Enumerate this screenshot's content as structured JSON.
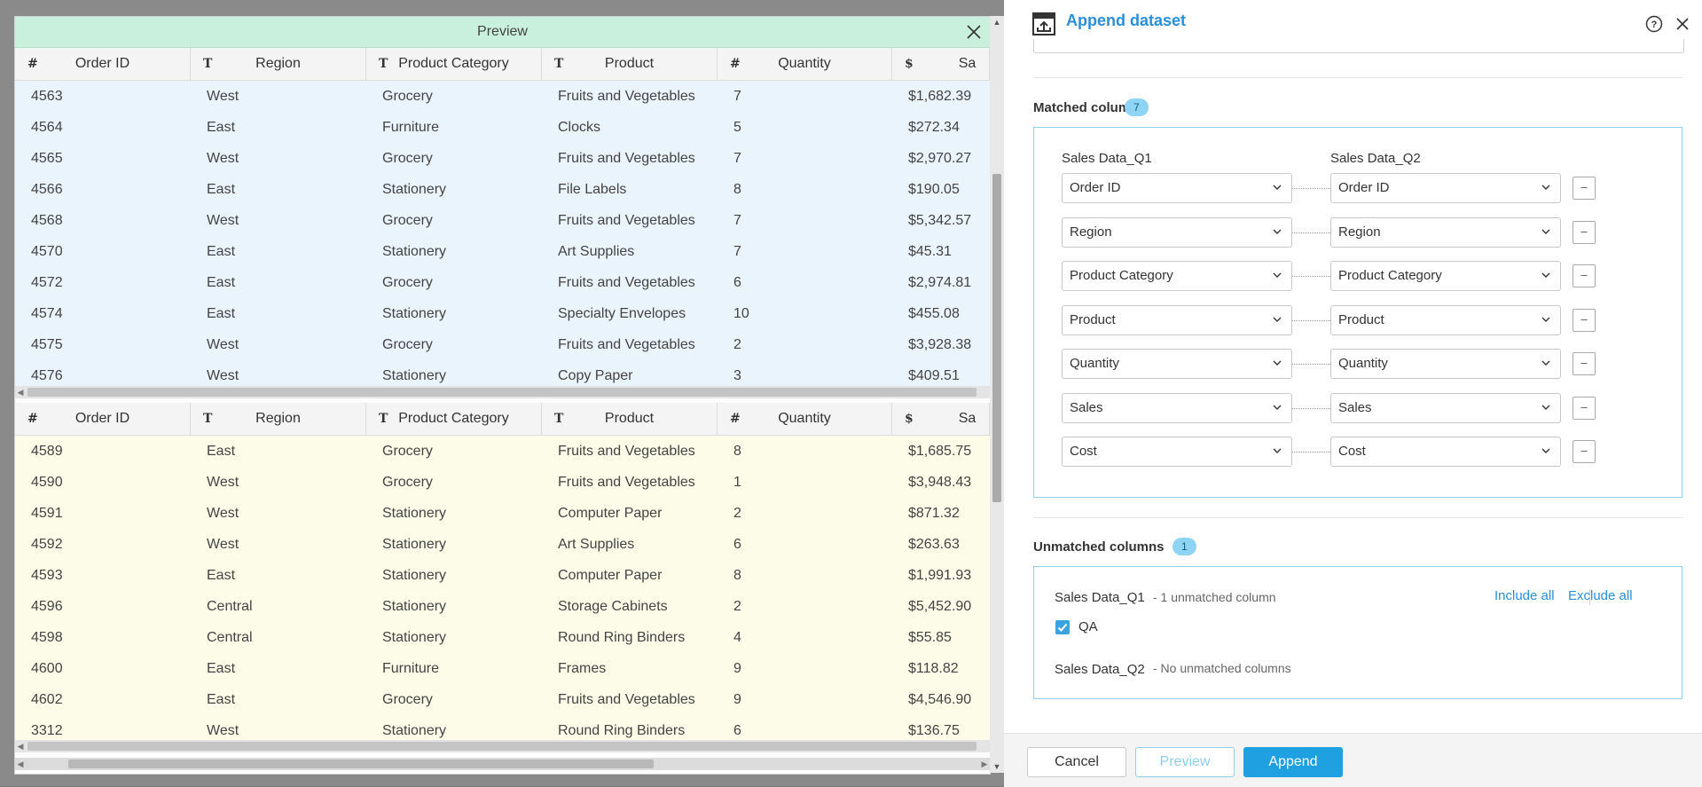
{
  "preview": {
    "title": "Preview",
    "columns": [
      {
        "type_icon": "#",
        "label": "Order ID"
      },
      {
        "type_icon": "T",
        "label": "Region"
      },
      {
        "type_icon": "T",
        "label": "Product Category"
      },
      {
        "type_icon": "T",
        "label": "Product"
      },
      {
        "type_icon": "#",
        "label": "Quantity"
      },
      {
        "type_icon": "$",
        "label": "Sa"
      }
    ],
    "top_rows": [
      [
        "4563",
        "West",
        "Grocery",
        "Fruits and Vegetables",
        "7",
        "$1,682.39"
      ],
      [
        "4564",
        "East",
        "Furniture",
        "Clocks",
        "5",
        "$272.34"
      ],
      [
        "4565",
        "West",
        "Grocery",
        "Fruits and Vegetables",
        "7",
        "$2,970.27"
      ],
      [
        "4566",
        "East",
        "Stationery",
        "File Labels",
        "8",
        "$190.05"
      ],
      [
        "4568",
        "West",
        "Grocery",
        "Fruits and Vegetables",
        "7",
        "$5,342.57"
      ],
      [
        "4570",
        "East",
        "Stationery",
        "Art Supplies",
        "7",
        "$45.31"
      ],
      [
        "4572",
        "East",
        "Grocery",
        "Fruits and Vegetables",
        "6",
        "$2,974.81"
      ],
      [
        "4574",
        "East",
        "Stationery",
        "Specialty Envelopes",
        "10",
        "$455.08"
      ],
      [
        "4575",
        "West",
        "Grocery",
        "Fruits and Vegetables",
        "2",
        "$3,928.38"
      ],
      [
        "4576",
        "West",
        "Stationery",
        "Copy Paper",
        "3",
        "$409.51"
      ]
    ],
    "bottom_rows": [
      [
        "4589",
        "East",
        "Grocery",
        "Fruits and Vegetables",
        "8",
        "$1,685.75"
      ],
      [
        "4590",
        "West",
        "Grocery",
        "Fruits and Vegetables",
        "1",
        "$3,948.43"
      ],
      [
        "4591",
        "West",
        "Stationery",
        "Computer Paper",
        "2",
        "$871.32"
      ],
      [
        "4592",
        "West",
        "Stationery",
        "Art Supplies",
        "6",
        "$263.63"
      ],
      [
        "4593",
        "East",
        "Stationery",
        "Computer Paper",
        "8",
        "$1,991.93"
      ],
      [
        "4596",
        "Central",
        "Stationery",
        "Storage Cabinets",
        "2",
        "$5,452.90"
      ],
      [
        "4598",
        "Central",
        "Stationery",
        "Round Ring Binders",
        "4",
        "$55.85"
      ],
      [
        "4600",
        "East",
        "Furniture",
        "Frames",
        "9",
        "$118.82"
      ],
      [
        "4602",
        "East",
        "Grocery",
        "Fruits and Vegetables",
        "9",
        "$4,546.90"
      ],
      [
        "3312",
        "West",
        "Stationery",
        "Round Ring Binders",
        "6",
        "$136.75"
      ]
    ]
  },
  "panel": {
    "title": "Append dataset",
    "matched": {
      "title": "Matched columns",
      "count": "7",
      "left_dataset": "Sales Data_Q1",
      "right_dataset": "Sales Data_Q2",
      "pairs": [
        {
          "left": "Order ID",
          "right": "Order ID"
        },
        {
          "left": "Region",
          "right": "Region"
        },
        {
          "left": "Product Category",
          "right": "Product Category"
        },
        {
          "left": "Product",
          "right": "Product"
        },
        {
          "left": "Quantity",
          "right": "Quantity"
        },
        {
          "left": "Sales",
          "right": "Sales"
        },
        {
          "left": "Cost",
          "right": "Cost"
        }
      ],
      "remove_label": "–"
    },
    "unmatched": {
      "title": "Unmatched columns",
      "count": "1",
      "q1_name": "Sales Data_Q1",
      "q1_note": "- 1 unmatched column",
      "include_all": "Include all",
      "exclude_all": "Exclude all",
      "column": "QA",
      "column_checked": true,
      "q2_name": "Sales Data_Q2",
      "q2_note": "- No unmatched columns"
    },
    "footer": {
      "cancel": "Cancel",
      "preview": "Preview",
      "append": "Append"
    }
  },
  "colors": {
    "accent": "#1fa0e0",
    "title_blue": "#2a8fd8",
    "top_grid_bg": "#e9f4fc",
    "bottom_grid_bg": "#fcfce8",
    "preview_titlebar": "#c8f0dc"
  }
}
